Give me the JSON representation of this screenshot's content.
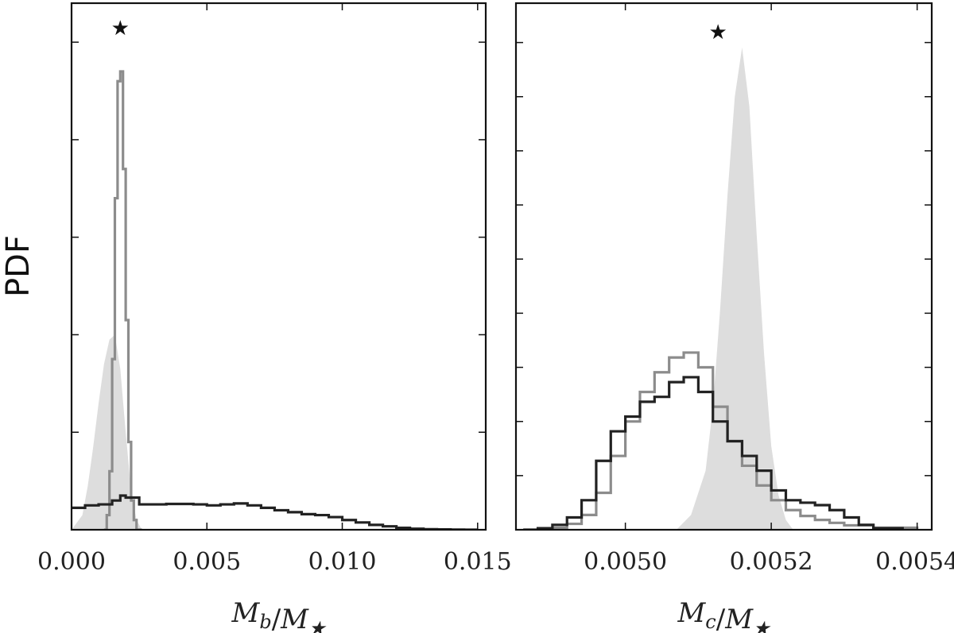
{
  "chart_data": [
    {
      "type": "area",
      "panel": "left",
      "ylabel": "PDF",
      "xlabel": "M_b/M_★",
      "xlim": [
        0.0,
        0.0153
      ],
      "ylim": [
        0,
        1.08
      ],
      "xticks": [
        0.0,
        0.005,
        0.01,
        0.015
      ],
      "xtick_labels": [
        "0.000",
        "0.005",
        "0.010",
        "0.015"
      ],
      "yticks": [
        0.2,
        0.4,
        0.6,
        0.8,
        1.0
      ],
      "star_marker": {
        "x": 0.0018,
        "y": 1.0,
        "symbol": "★"
      },
      "series": [
        {
          "style": "filled-light",
          "color": "#dddddd",
          "x": [
            0.0,
            0.0004,
            0.0006,
            0.0008,
            0.001,
            0.0012,
            0.0014,
            0.0016,
            0.0018,
            0.002,
            0.0022,
            0.0024,
            0.0026,
            0.003
          ],
          "y": [
            0.0,
            0.03,
            0.09,
            0.17,
            0.26,
            0.34,
            0.39,
            0.4,
            0.33,
            0.2,
            0.08,
            0.02,
            0.0,
            0.0
          ]
        },
        {
          "style": "step-gray",
          "color": "#8c8c8c",
          "x": [
            0.0012,
            0.0013,
            0.0014,
            0.0015,
            0.0016,
            0.0017,
            0.0018,
            0.0019,
            0.002,
            0.0021,
            0.0022,
            0.0023,
            0.0024,
            0.0026
          ],
          "y": [
            0.0,
            0.03,
            0.12,
            0.35,
            0.68,
            0.92,
            0.94,
            0.74,
            0.43,
            0.18,
            0.06,
            0.02,
            0.0,
            0.0
          ]
        },
        {
          "style": "step-dark",
          "color": "#222222",
          "x": [
            0.0,
            0.0005,
            0.001,
            0.0015,
            0.0018,
            0.002,
            0.0025,
            0.003,
            0.0035,
            0.004,
            0.0045,
            0.005,
            0.0055,
            0.006,
            0.0065,
            0.007,
            0.0075,
            0.008,
            0.0085,
            0.009,
            0.0095,
            0.01,
            0.0105,
            0.011,
            0.0115,
            0.012,
            0.0125,
            0.013,
            0.0135,
            0.014,
            0.0145,
            0.015
          ],
          "y": [
            0.045,
            0.05,
            0.052,
            0.06,
            0.07,
            0.066,
            0.052,
            0.052,
            0.053,
            0.053,
            0.052,
            0.05,
            0.052,
            0.054,
            0.05,
            0.045,
            0.04,
            0.036,
            0.032,
            0.03,
            0.026,
            0.02,
            0.015,
            0.01,
            0.007,
            0.004,
            0.002,
            0.001,
            0.0006,
            0.0003,
            0.0,
            0.0
          ]
        }
      ]
    },
    {
      "type": "area",
      "panel": "right",
      "xlabel": "M_c/M_★",
      "xlim": [
        0.00485,
        0.00542
      ],
      "ylim": [
        0,
        1.07
      ],
      "xticks": [
        0.005,
        0.0052,
        0.0054
      ],
      "xtick_labels": [
        "0.0050",
        "0.0052",
        "0.0054"
      ],
      "yticks": [
        0.11,
        0.22,
        0.33,
        0.44,
        0.55,
        0.66,
        0.77,
        0.88,
        0.99
      ],
      "star_marker": {
        "x": 0.005127,
        "y": 1.0,
        "symbol": "★"
      },
      "series": [
        {
          "style": "filled-light",
          "color": "#dddddd",
          "x": [
            0.00507,
            0.00509,
            0.00511,
            0.00512,
            0.00513,
            0.00514,
            0.00515,
            0.00516,
            0.00517,
            0.00518,
            0.00519,
            0.0052,
            0.00521,
            0.00522,
            0.00523
          ],
          "y": [
            0.0,
            0.03,
            0.12,
            0.25,
            0.45,
            0.68,
            0.88,
            0.98,
            0.86,
            0.6,
            0.36,
            0.17,
            0.07,
            0.02,
            0.0
          ]
        },
        {
          "style": "step-gray",
          "color": "#8c8c8c",
          "x": [
            0.00488,
            0.0049,
            0.00492,
            0.00494,
            0.00496,
            0.00498,
            0.005,
            0.00502,
            0.00504,
            0.00506,
            0.00508,
            0.0051,
            0.00512,
            0.00514,
            0.00516,
            0.00518,
            0.0052,
            0.00522,
            0.00524,
            0.00526,
            0.00528,
            0.0053,
            0.00534,
            0.0054
          ],
          "y": [
            0.0,
            0.004,
            0.012,
            0.03,
            0.075,
            0.15,
            0.22,
            0.28,
            0.32,
            0.35,
            0.36,
            0.33,
            0.25,
            0.18,
            0.13,
            0.09,
            0.06,
            0.04,
            0.028,
            0.02,
            0.014,
            0.009,
            0.004,
            0.0
          ]
        },
        {
          "style": "step-dark",
          "color": "#222222",
          "x": [
            0.00486,
            0.00488,
            0.0049,
            0.00492,
            0.00494,
            0.00496,
            0.00498,
            0.005,
            0.00502,
            0.00504,
            0.00506,
            0.00508,
            0.0051,
            0.00512,
            0.00514,
            0.00516,
            0.00518,
            0.0052,
            0.00522,
            0.00524,
            0.00526,
            0.00528,
            0.0053,
            0.00532,
            0.00534,
            0.00538
          ],
          "y": [
            0.0,
            0.003,
            0.01,
            0.025,
            0.06,
            0.14,
            0.2,
            0.23,
            0.26,
            0.27,
            0.3,
            0.31,
            0.28,
            0.22,
            0.18,
            0.15,
            0.12,
            0.08,
            0.06,
            0.055,
            0.05,
            0.04,
            0.025,
            0.01,
            0.003,
            0.0
          ]
        }
      ]
    }
  ]
}
